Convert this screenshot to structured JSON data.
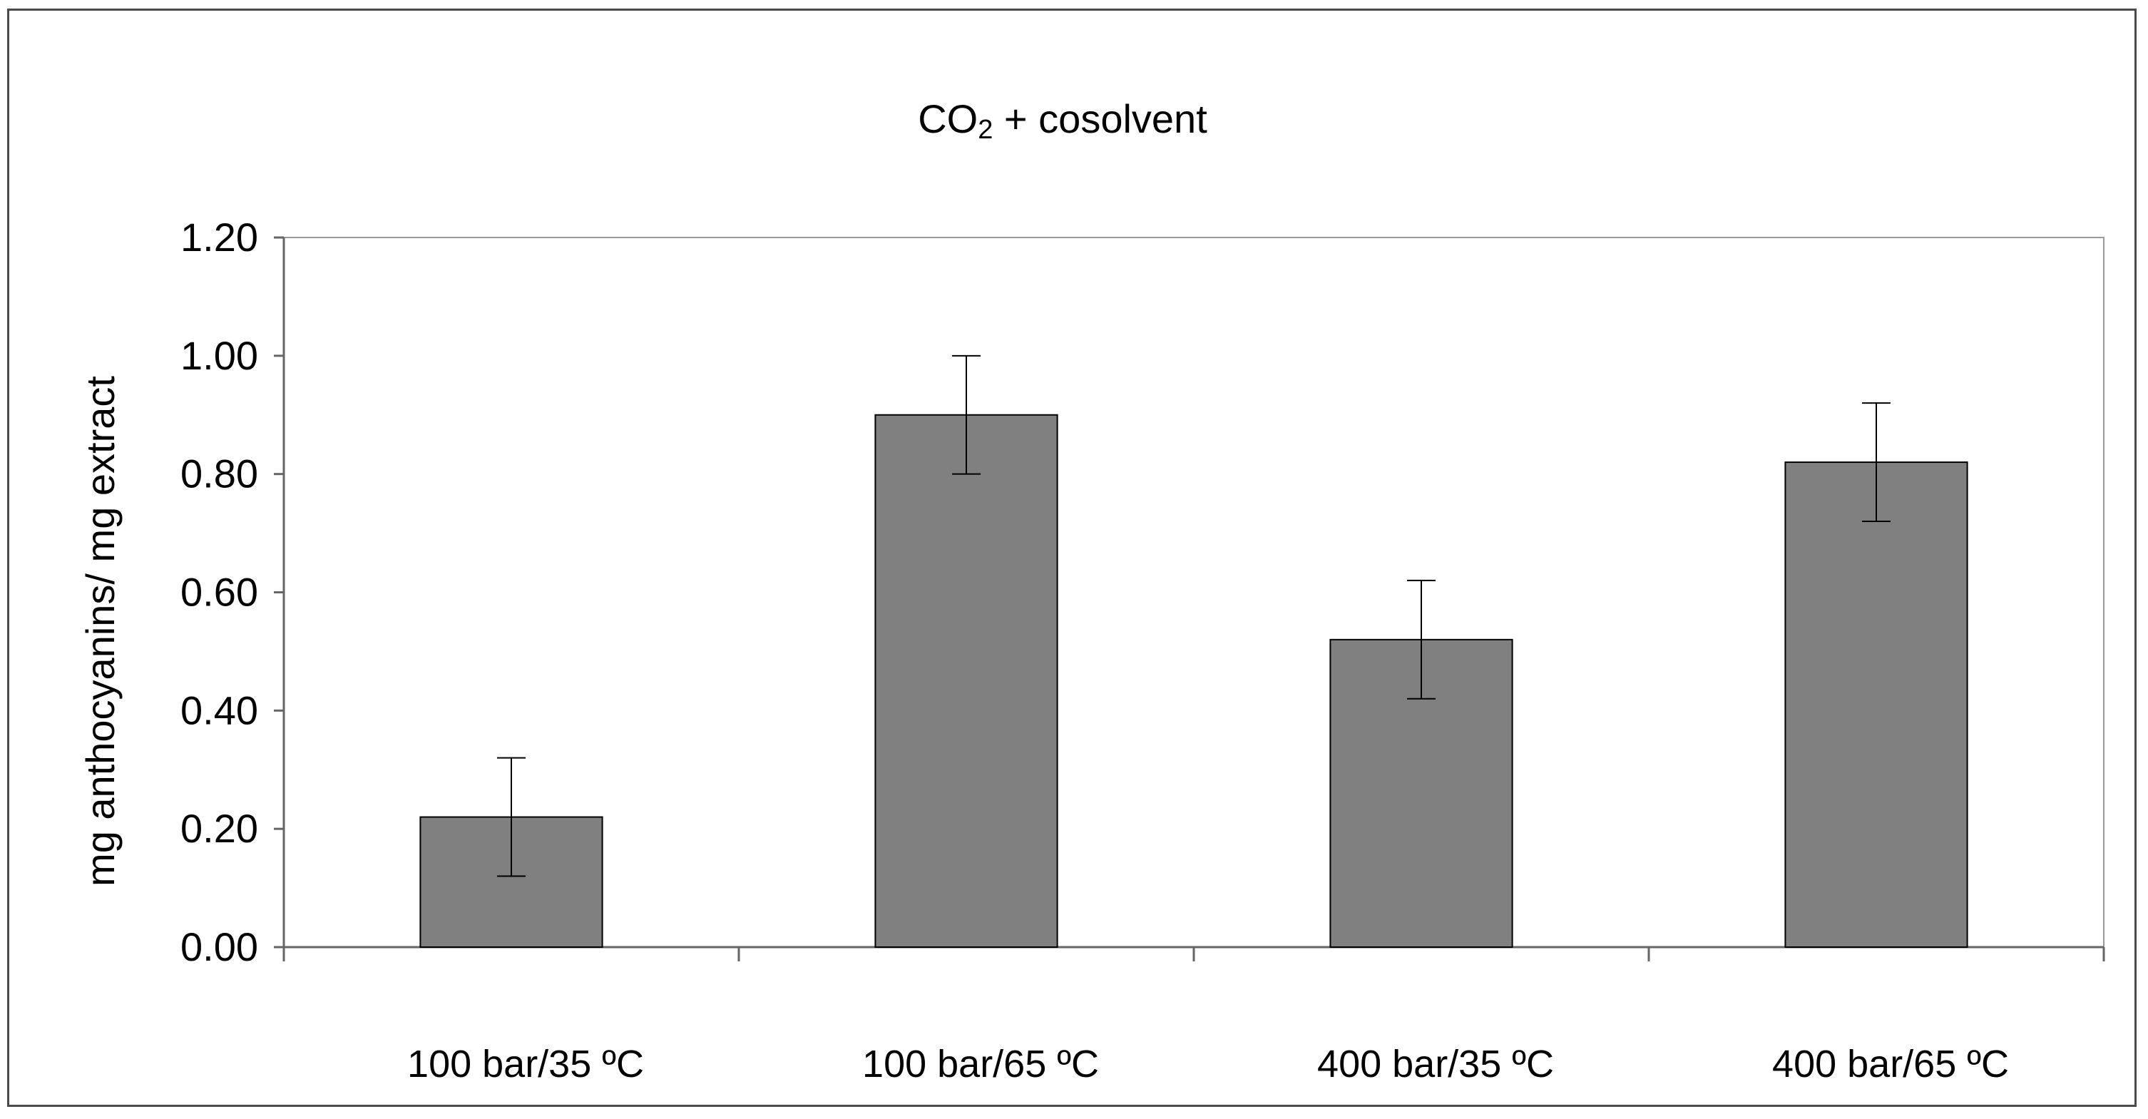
{
  "chart_data": {
    "type": "bar",
    "title": "CO2 + cosolvent",
    "title_main": "CO",
    "title_subscript": "2",
    "title_rest": " + cosolvent",
    "xlabel": "",
    "ylabel": "mg anthocyanins/ mg extract",
    "categories": [
      "100 bar/35 ºC",
      "100 bar/65 ºC",
      "400 bar/35 ºC",
      "400 bar/65 ºC"
    ],
    "values": [
      0.22,
      0.9,
      0.52,
      0.82
    ],
    "error": [
      0.1,
      0.1,
      0.1,
      0.1
    ],
    "ylim": [
      0,
      1.2
    ],
    "yticks": [
      0.0,
      0.2,
      0.4,
      0.6,
      0.8,
      1.0,
      1.2
    ],
    "ytick_labels": [
      "0.00",
      "0.20",
      "0.40",
      "0.60",
      "0.80",
      "1.00",
      "1.20"
    ],
    "bar_color": "#808080",
    "grid": false,
    "legend": "none"
  }
}
